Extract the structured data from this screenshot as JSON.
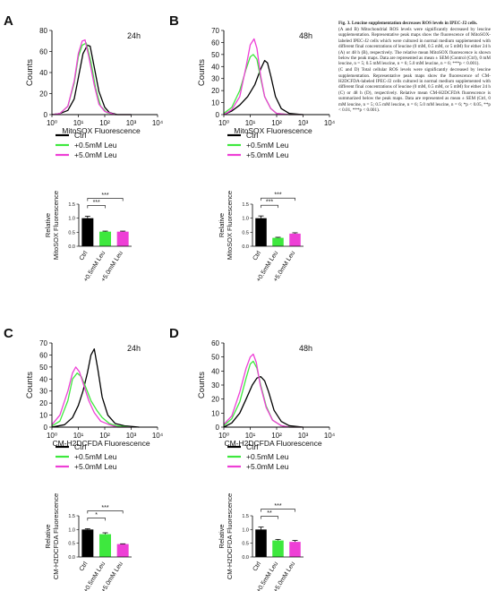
{
  "caption": {
    "title": "Fig. 3. Leucine supplementation decreases ROS levels in IPEC-J2 cells.",
    "paragraphs": [
      "(A and B) Mitochondrial ROS levels were significantly decreased by leucine supplementation. Representative peak maps show the fluorescence of MitoSOX-labeled IPEC-J2 cells which were cultured in normal medium supplemented with different final concentrations of leucine (0 mM, 0.5 mM, or 5 mM) for either 24 h (A) or 48 h (B), respectively. The relative mean MitoSOX fluorescence is shown below the peak maps. Data are represented as mean ± SEM (Control (Ctrl), 0 mM leucine, n = 5; 0.5 mM leucine, n = 6; 5.0 mM leucine, n = 6; ***p < 0.001).",
      "(C and D) Total cellular ROS levels were significantly decreased by leucine supplementation. Representative peak maps show the fluorescence of CM-H2DCFDA-labeled IPEC-J2 cells cultured in normal medium supplemented with different final concentrations of leucine (0 mM, 0.5 mM, or 5 mM) for either 24 h (C) or 48 h (D), respectively. Relative mean CM-H2DCFDA fluorescence is summarized below the peak maps. Data are represented as mean ± SEM (Ctrl, 0 mM leucine, n = 5; 0.5 mM leucine, n = 6; 5.0 mM leucine, n = 6; *p < 0.05, **p < 0.01, ***p < 0.001)."
    ]
  },
  "colors": {
    "ctrl": "#000000",
    "leu05": "#3ee83e",
    "leu50": "#ee3fd6",
    "axis": "#000000"
  },
  "legend_entries": [
    "Ctrl",
    "+0.5mM Leu",
    "+5.0mM Leu"
  ],
  "chart_data": [
    {
      "panel": "A",
      "type": "line",
      "tag": "24h",
      "xlabel": "MitoSOX Fluorescence",
      "ylabel": "Counts",
      "xscale": "log",
      "xlim": [
        1,
        10000
      ],
      "ylim": [
        0,
        80
      ],
      "xticks": [
        "10⁰",
        "10¹",
        "10²",
        "10³",
        "10⁴"
      ],
      "yticks": [
        "0",
        "20",
        "40",
        "60",
        "80"
      ],
      "series": [
        {
          "name": "Ctrl",
          "color": "ctrl",
          "x": [
            1,
            2,
            4,
            7,
            10,
            15,
            22,
            28,
            40,
            60,
            100,
            150,
            300,
            1000
          ],
          "y": [
            0,
            1,
            4,
            15,
            35,
            58,
            66,
            65,
            45,
            22,
            7,
            2,
            0,
            0
          ]
        },
        {
          "name": "+0.5mM Leu",
          "color": "leu05",
          "x": [
            1,
            2,
            4,
            7,
            10,
            14,
            20,
            30,
            45,
            70,
            120,
            250,
            1000
          ],
          "y": [
            0,
            1,
            8,
            30,
            55,
            66,
            68,
            50,
            25,
            8,
            2,
            0,
            0
          ]
        },
        {
          "name": "+5.0mM Leu",
          "color": "leu50",
          "x": [
            1,
            2,
            4,
            7,
            10,
            14,
            18,
            25,
            40,
            60,
            100,
            250,
            1000
          ],
          "y": [
            0,
            1,
            8,
            32,
            58,
            70,
            71,
            55,
            28,
            10,
            3,
            0,
            0
          ]
        }
      ]
    },
    {
      "panel": "B",
      "type": "line",
      "tag": "48h",
      "xlabel": "MitoSOX Fluorescence",
      "ylabel": "Counts",
      "xscale": "log",
      "xlim": [
        1,
        10000
      ],
      "ylim": [
        0,
        70
      ],
      "xticks": [
        "10⁰",
        "10¹",
        "10²",
        "10³",
        "10⁴"
      ],
      "yticks": [
        "0",
        "10",
        "20",
        "30",
        "40",
        "50",
        "60",
        "70"
      ],
      "series": [
        {
          "name": "Ctrl",
          "color": "ctrl",
          "x": [
            1,
            2,
            4,
            8,
            15,
            25,
            35,
            45,
            60,
            90,
            150,
            300,
            1000
          ],
          "y": [
            0,
            3,
            8,
            15,
            25,
            38,
            45,
            43,
            32,
            15,
            5,
            1,
            0
          ]
        },
        {
          "name": "+0.5mM Leu",
          "color": "leu05",
          "x": [
            1,
            2,
            4,
            7,
            10,
            13,
            18,
            25,
            35,
            60,
            100,
            300,
            1000
          ],
          "y": [
            1,
            6,
            20,
            38,
            48,
            50,
            46,
            30,
            15,
            5,
            1,
            0,
            0
          ]
        },
        {
          "name": "+5.0mM Leu",
          "color": "leu50",
          "x": [
            1,
            2,
            4,
            7,
            10,
            14,
            18,
            25,
            35,
            60,
            100,
            300,
            1000
          ],
          "y": [
            0,
            4,
            15,
            40,
            58,
            63,
            55,
            32,
            15,
            5,
            1,
            0,
            0
          ]
        }
      ]
    },
    {
      "panel": "A",
      "type": "bar",
      "ylabel": "Relative\nMitoSOX Fluorescence",
      "categories": [
        "Ctrl",
        "+0.5mM Leu",
        "+5.0mM Leu"
      ],
      "values": [
        1.0,
        0.52,
        0.52
      ],
      "errors": [
        0.07,
        0.02,
        0.02
      ],
      "ylim": [
        0,
        1.5
      ],
      "yticks": [
        "0.0",
        "0.5",
        "1.0",
        "1.5"
      ],
      "significance": [
        {
          "from": 0,
          "to": 1,
          "label": "***"
        },
        {
          "from": 0,
          "to": 2,
          "label": "***"
        }
      ]
    },
    {
      "panel": "B",
      "type": "bar",
      "ylabel": "Relative\nMitoSOX Fluorescence",
      "categories": [
        "Ctrl",
        "+0.5mM Leu",
        "+5.0mM Leu"
      ],
      "values": [
        1.0,
        0.3,
        0.45
      ],
      "errors": [
        0.08,
        0.02,
        0.03
      ],
      "ylim": [
        0,
        1.5
      ],
      "yticks": [
        "0.0",
        "0.5",
        "1.0",
        "1.5"
      ],
      "significance": [
        {
          "from": 0,
          "to": 1,
          "label": "***"
        },
        {
          "from": 0,
          "to": 2,
          "label": "***"
        }
      ]
    },
    {
      "panel": "C",
      "type": "line",
      "tag": "24h",
      "xlabel": "CM-H2DCFDA  Fluorescence",
      "ylabel": "Counts",
      "xscale": "log",
      "xlim": [
        1,
        10000
      ],
      "ylim": [
        0,
        70
      ],
      "xticks": [
        "10⁰",
        "10¹",
        "10²",
        "10³",
        "10⁴"
      ],
      "yticks": [
        "0",
        "10",
        "20",
        "30",
        "40",
        "50",
        "60",
        "70"
      ],
      "series": [
        {
          "name": "Ctrl",
          "color": "ctrl",
          "x": [
            1,
            3,
            6,
            10,
            15,
            22,
            30,
            40,
            55,
            80,
            130,
            250,
            600,
            2000
          ],
          "y": [
            0,
            2,
            8,
            18,
            30,
            45,
            60,
            65,
            48,
            25,
            10,
            3,
            1,
            0
          ]
        },
        {
          "name": "+0.5mM Leu",
          "color": "leu05",
          "x": [
            1,
            2,
            4,
            6,
            9,
            13,
            20,
            30,
            50,
            80,
            150,
            300,
            1000
          ],
          "y": [
            1,
            5,
            22,
            40,
            45,
            42,
            32,
            22,
            14,
            8,
            3,
            1,
            0
          ]
        },
        {
          "name": "+5.0mM Leu",
          "color": "leu50",
          "x": [
            1,
            2,
            4,
            6,
            8,
            11,
            16,
            25,
            40,
            70,
            150,
            300,
            1000
          ],
          "y": [
            2,
            10,
            30,
            45,
            50,
            46,
            35,
            22,
            12,
            5,
            2,
            0,
            0
          ]
        }
      ]
    },
    {
      "panel": "D",
      "type": "line",
      "tag": "48h",
      "xlabel": "CM-H2DCFDA  Fluorescence",
      "ylabel": "Counts",
      "xscale": "log",
      "xlim": [
        1,
        10000
      ],
      "ylim": [
        0,
        60
      ],
      "xticks": [
        "10⁰",
        "10¹",
        "10²",
        "10³",
        "10⁴"
      ],
      "yticks": [
        "0",
        "10",
        "20",
        "30",
        "40",
        "50",
        "60"
      ],
      "series": [
        {
          "name": "Ctrl",
          "color": "ctrl",
          "x": [
            1,
            2,
            4,
            7,
            12,
            18,
            25,
            35,
            50,
            80,
            150,
            300,
            1000
          ],
          "y": [
            0,
            3,
            10,
            20,
            30,
            35,
            36,
            33,
            25,
            12,
            4,
            1,
            0
          ]
        },
        {
          "name": "+0.5mM Leu",
          "color": "leu05",
          "x": [
            1,
            2,
            4,
            7,
            10,
            13,
            18,
            25,
            40,
            70,
            150,
            300,
            1000
          ],
          "y": [
            1,
            6,
            18,
            35,
            45,
            47,
            42,
            30,
            15,
            5,
            1,
            0,
            0
          ]
        },
        {
          "name": "+5.0mM Leu",
          "color": "leu50",
          "x": [
            1,
            2,
            4,
            7,
            10,
            13,
            17,
            24,
            40,
            70,
            150,
            300,
            1000
          ],
          "y": [
            2,
            8,
            25,
            42,
            50,
            52,
            46,
            30,
            14,
            5,
            1,
            0,
            0
          ]
        }
      ]
    },
    {
      "panel": "C",
      "type": "bar",
      "ylabel": "Relative\nCM-H2DCFDA Fluorescence",
      "categories": [
        "Ctrl",
        "+0.5mM Leu",
        "+5.0mM Leu"
      ],
      "values": [
        1.0,
        0.83,
        0.47
      ],
      "errors": [
        0.03,
        0.05,
        0.01
      ],
      "ylim": [
        0,
        1.5
      ],
      "yticks": [
        "0.0",
        "0.5",
        "1.0",
        "1.5"
      ],
      "significance": [
        {
          "from": 0,
          "to": 1,
          "label": "*"
        },
        {
          "from": 0,
          "to": 2,
          "label": "***"
        }
      ]
    },
    {
      "panel": "D",
      "type": "bar",
      "ylabel": "Relative\nCM-H2DCFDA Fluorescence",
      "categories": [
        "Ctrl",
        "+0.5mM Leu",
        "+5.0mM Leu"
      ],
      "values": [
        1.0,
        0.6,
        0.55
      ],
      "errors": [
        0.09,
        0.04,
        0.05
      ],
      "ylim": [
        0,
        1.5
      ],
      "yticks": [
        "0.0",
        "0.5",
        "1.0",
        "1.5"
      ],
      "significance": [
        {
          "from": 0,
          "to": 1,
          "label": "**"
        },
        {
          "from": 0,
          "to": 2,
          "label": "***"
        }
      ]
    }
  ]
}
